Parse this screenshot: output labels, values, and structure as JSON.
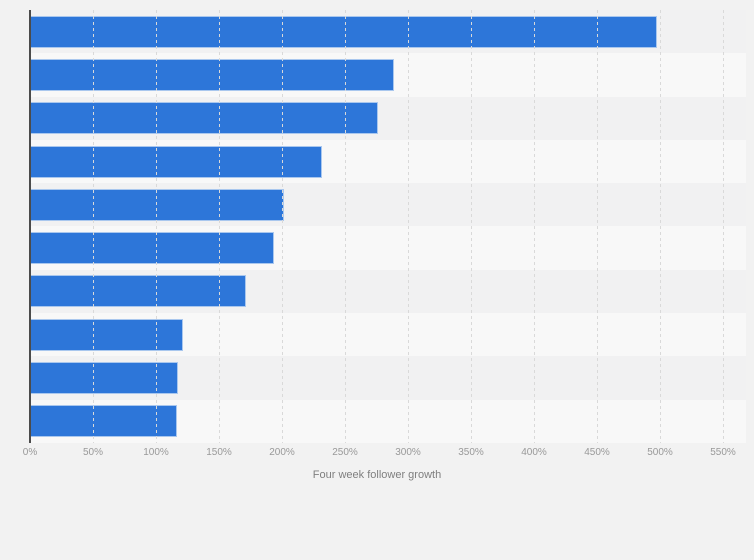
{
  "chart_data": {
    "type": "bar",
    "orientation": "horizontal",
    "title": "",
    "xlabel": "Four week follower growth",
    "ylabel": "",
    "unit": "%",
    "categories": [],
    "values": [
      497,
      288,
      275,
      231,
      201,
      193,
      171,
      121,
      117,
      116
    ],
    "x_tick_labels": [
      "0%",
      "50%",
      "100%",
      "150%",
      "200%",
      "250%",
      "300%",
      "350%",
      "400%",
      "450%",
      "500%",
      "550%"
    ],
    "x_tick_values": [
      0,
      50,
      100,
      150,
      200,
      250,
      300,
      350,
      400,
      450,
      500,
      550
    ],
    "xlim": [
      0,
      550
    ],
    "grid": "vertical-dashed",
    "legend": "none",
    "zebra_rows": true
  },
  "colors": {
    "background": "#f2f2f2",
    "bar": "#2d76d9",
    "bar_border": "#a9c7ee",
    "axis_line": "#4b4b4b",
    "gridline": "#d9d9d9",
    "tick_label": "#999999",
    "axis_title": "#7f7f7f",
    "row_stripe_dark": "#f1f1f2",
    "row_stripe_light": "#f8f8f8"
  }
}
